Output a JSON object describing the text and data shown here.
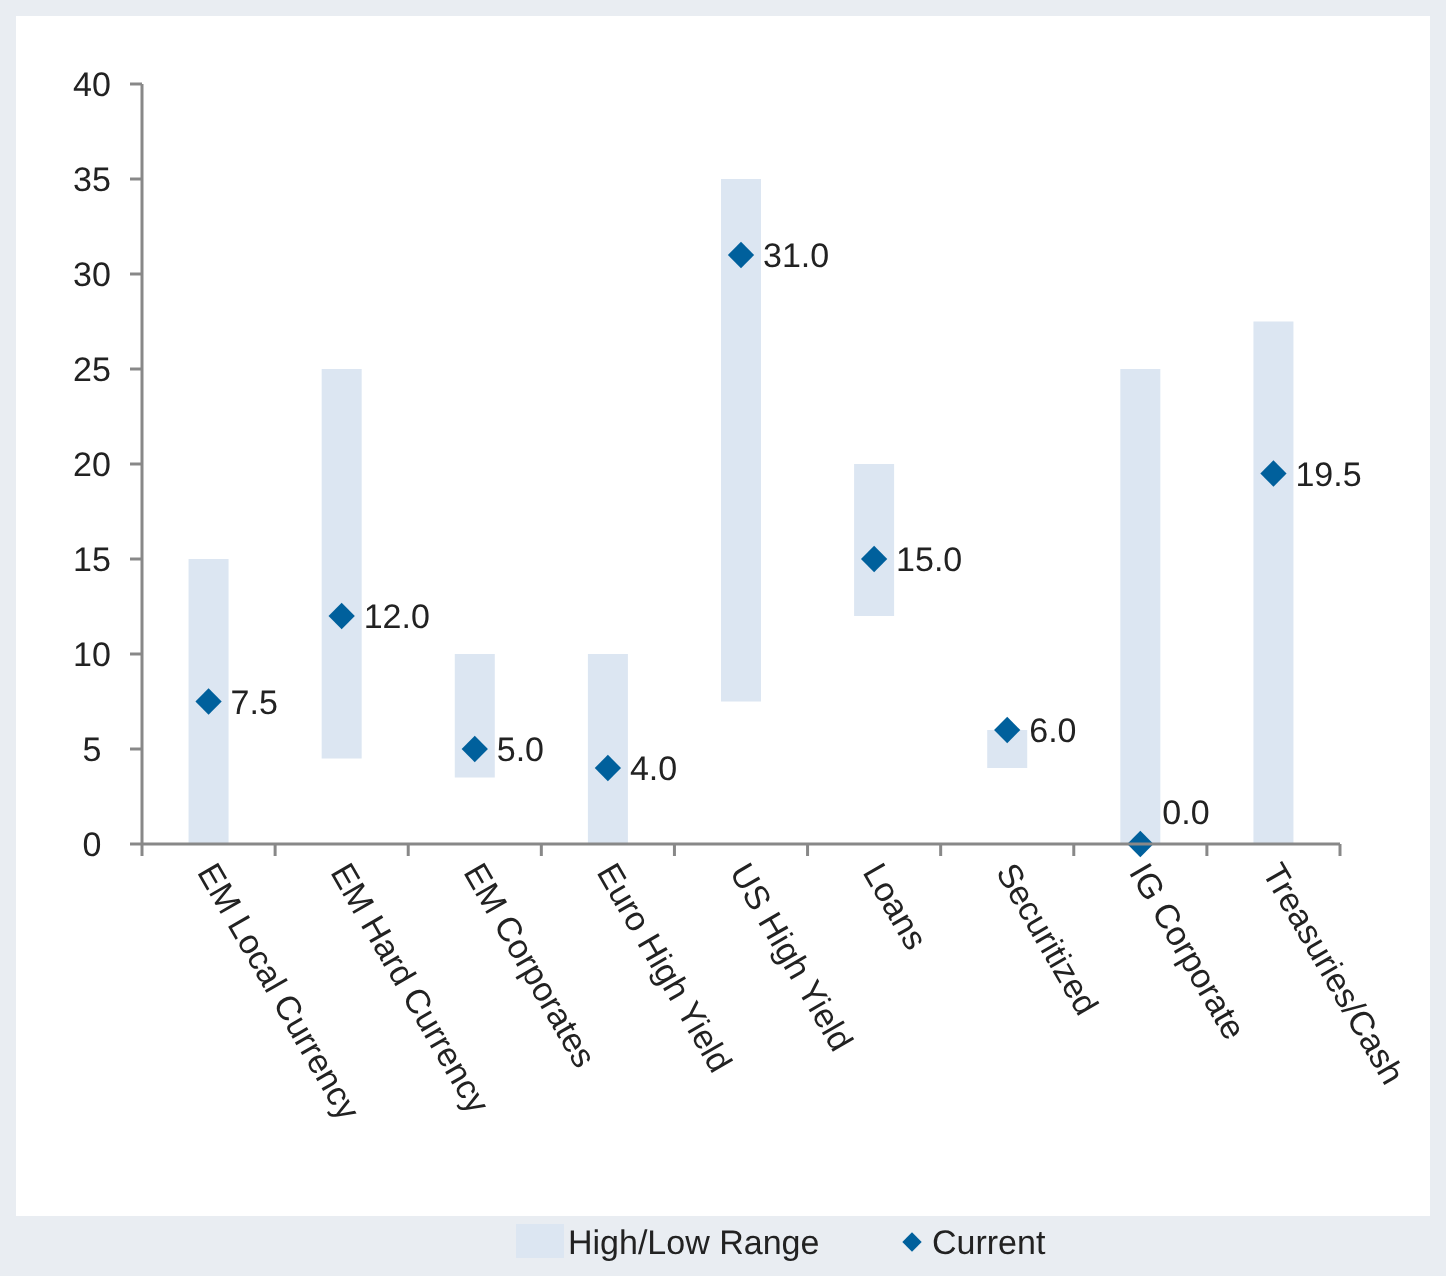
{
  "chart_data": {
    "type": "bar",
    "categories": [
      "EM Local Currency",
      "EM Hard Currency",
      "EM Corporates",
      "Euro High Yield",
      "US High Yield",
      "Loans",
      "Securitized",
      "IG Corporate",
      "Treasuries/Cash"
    ],
    "series": [
      {
        "name": "High/Low Range",
        "color": "#dce6f2",
        "base": [
          0,
          4.5,
          3.5,
          0,
          7.5,
          12,
          4,
          0,
          0
        ],
        "values": [
          15,
          20.5,
          6.5,
          10,
          27.5,
          8,
          2,
          25,
          27.5
        ]
      },
      {
        "name": "Current",
        "type": "scatter",
        "color": "#00609c",
        "marker": "diamond",
        "values": [
          7.5,
          12,
          5,
          4,
          31,
          15,
          6,
          0,
          19.5
        ],
        "value_labels": [
          "7.5",
          "12.0",
          "5.0",
          "4.0",
          "31.0",
          "15.0",
          "6.0",
          "0.0",
          "19.5"
        ]
      }
    ],
    "ylim": [
      0,
      40
    ],
    "yticks": [
      0,
      5,
      10,
      15,
      20,
      25,
      30,
      35,
      40
    ],
    "grid": false,
    "legend": "bottom"
  }
}
